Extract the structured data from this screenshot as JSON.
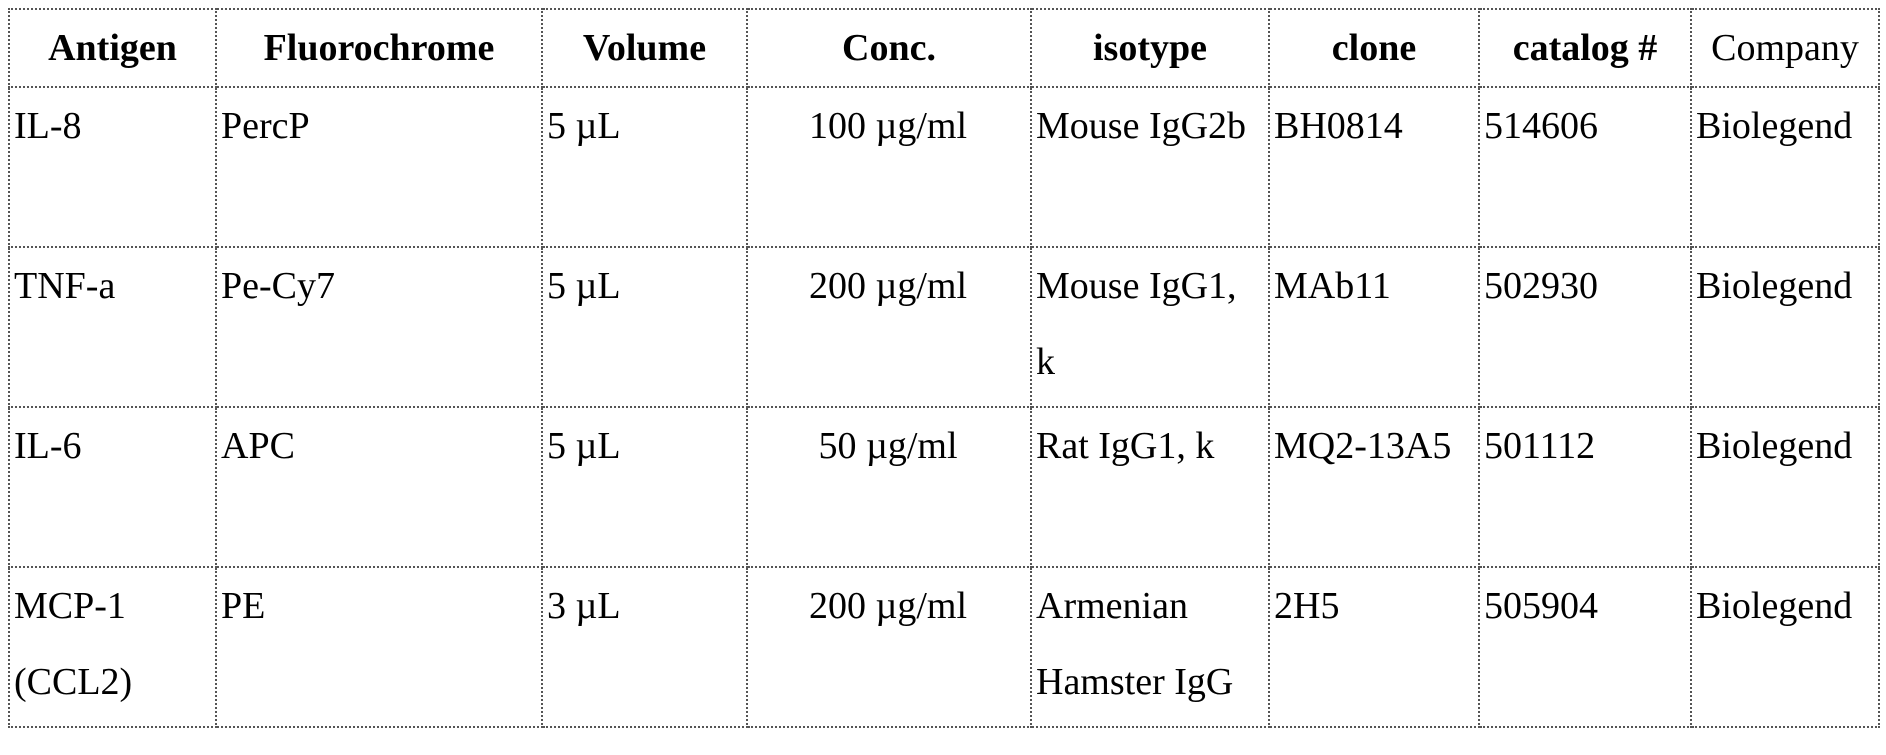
{
  "table": {
    "headers": [
      "Antigen",
      "Fluorochrome",
      "Volume",
      "Conc.",
      "isotype",
      "clone",
      "catalog #",
      "Company"
    ],
    "rows": [
      [
        "IL-8",
        "PercP",
        "5 µL",
        "100 µg/ml",
        "Mouse IgG2b",
        "BH0814",
        "514606",
        "Biolegend"
      ],
      [
        "TNF-a",
        "Pe-Cy7",
        "5 µL",
        "200 µg/ml",
        "Mouse IgG1, k",
        "MAb11",
        "502930",
        "Biolegend"
      ],
      [
        "IL-6",
        "APC",
        "5 µL",
        "50 µg/ml",
        "Rat IgG1, k",
        "MQ2-13A5",
        "501112",
        "Biolegend"
      ],
      [
        "MCP-1 (CCL2)",
        "PE",
        "3 µL",
        "200 µg/ml",
        "Armenian Hamster IgG",
        "2H5",
        "505904",
        "Biolegend"
      ]
    ]
  }
}
